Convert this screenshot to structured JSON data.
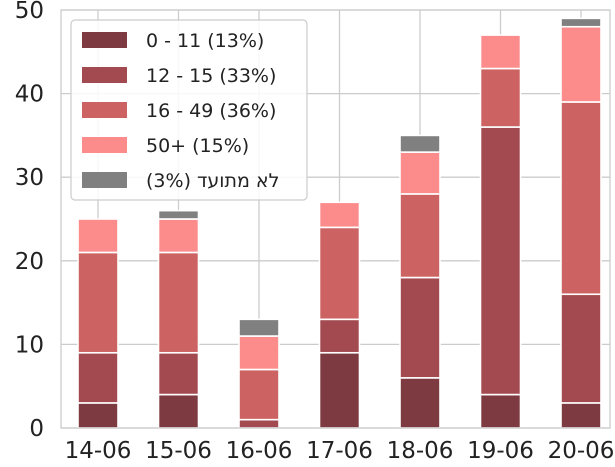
{
  "chart_data": {
    "type": "bar",
    "stacked": true,
    "categories": [
      "14-06",
      "15-06",
      "16-06",
      "17-06",
      "18-06",
      "19-06",
      "20-06"
    ],
    "series": [
      {
        "name": "0 - 11 (13%)",
        "color": "#7d3a40",
        "values": [
          3,
          4,
          0,
          9,
          6,
          4,
          3
        ]
      },
      {
        "name": "12 - 15 (33%)",
        "color": "#a34a50",
        "values": [
          6,
          5,
          1,
          4,
          12,
          32,
          13
        ]
      },
      {
        "name": "16 - 49 (36%)",
        "color": "#cc6262",
        "values": [
          12,
          12,
          6,
          11,
          10,
          7,
          23
        ]
      },
      {
        "name": "50+ (15%)",
        "color": "#fc8c8c",
        "values": [
          4,
          4,
          4,
          3,
          5,
          4,
          9
        ]
      },
      {
        "name": "לא מתועד (3%)",
        "color": "#808080",
        "values": [
          0,
          1,
          2,
          0,
          2,
          0,
          1
        ]
      }
    ],
    "ylim": [
      0,
      50
    ],
    "yticks": [
      0,
      10,
      20,
      30,
      40,
      50
    ],
    "grid": true,
    "legend": "top-left"
  }
}
